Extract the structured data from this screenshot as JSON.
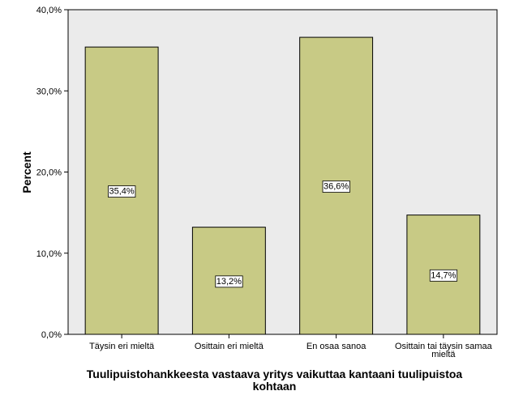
{
  "chart_data": {
    "type": "bar",
    "categories": [
      "Täysin eri mieltä",
      "Osittain eri mieltä",
      "En osaa sanoa",
      "Osittain tai täysin samaa mieltä"
    ],
    "category_lines": [
      [
        "Täysin eri mieltä"
      ],
      [
        "Osittain eri mieltä"
      ],
      [
        "En osaa sanoa"
      ],
      [
        "Osittain tai täysin samaa",
        "mieltä"
      ]
    ],
    "values": [
      35.4,
      13.2,
      36.6,
      14.7
    ],
    "value_labels": [
      "35,4%",
      "13,2%",
      "36,6%",
      "14,7%"
    ],
    "xlabel": "Tuulipuistohankkeesta vastaava yritys vaikuttaa kantaani tuulipuistoa kohtaan",
    "xlabel_lines": [
      "Tuulipuistohankkeesta vastaava yritys vaikuttaa kantaani tuulipuistoa",
      "kohtaan"
    ],
    "ylabel": "Percent",
    "ylim": [
      0,
      40
    ],
    "yticks": [
      0,
      10,
      20,
      30,
      40
    ],
    "ytick_labels": [
      "0,0%",
      "10,0%",
      "20,0%",
      "30,0%",
      "40,0%"
    ],
    "grid": false,
    "colors": {
      "plot_background": "#ebebeb",
      "bar_fill": "#c8ca85",
      "bar_stroke": "#000000"
    }
  }
}
